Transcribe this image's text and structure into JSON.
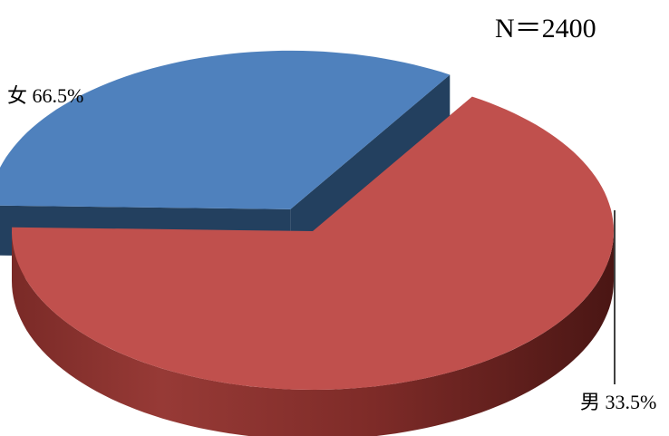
{
  "chart_data": {
    "type": "pie",
    "style": "3d-exploded",
    "annotation": "N＝2400",
    "slices": [
      {
        "label": "女",
        "value": 66.5,
        "display": "66.5%",
        "color": "#C0504D"
      },
      {
        "label": "男",
        "value": 33.5,
        "display": "33.5%",
        "color": "#4F81BD"
      }
    ]
  }
}
